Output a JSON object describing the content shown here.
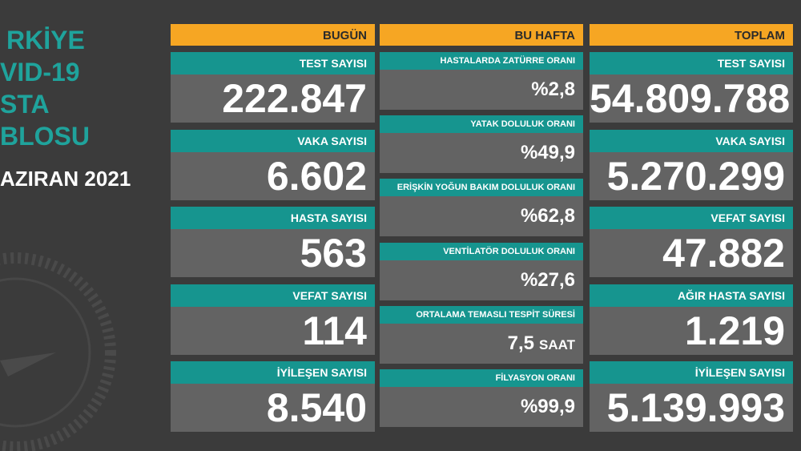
{
  "side_title": [
    "RKİYE",
    "VID-19",
    "STA",
    "BLOSU"
  ],
  "date": "AZIRAN 2021",
  "columns": [
    {
      "title": "BUGÜN",
      "items": [
        {
          "label": "TEST SAYISI",
          "value": "222.847"
        },
        {
          "label": "VAKA SAYISI",
          "value": "6.602"
        },
        {
          "label": "HASTA SAYISI",
          "value": "563"
        },
        {
          "label": "VEFAT SAYISI",
          "value": "114"
        },
        {
          "label": "İYİLEŞEN SAYISI",
          "value": "8.540"
        }
      ]
    },
    {
      "title": "BU HAFTA",
      "items": [
        {
          "label": "HASTALARDA ZATÜRRE ORANI",
          "value": "%2,8"
        },
        {
          "label": "YATAK DOLULUK ORANI",
          "value": "%49,9"
        },
        {
          "label": "ERİŞKİN YOĞUN BAKIM DOLULUK ORANI",
          "value": "%62,8"
        },
        {
          "label": "VENTİLATÖR DOLULUK ORANI",
          "value": "%27,6"
        },
        {
          "label": "ORTALAMA TEMASLI TESPİT SÜRESİ",
          "value": "7,5",
          "unit": "SAAT"
        },
        {
          "label": "FİLYASYON ORANI",
          "value": "%99,9"
        }
      ]
    },
    {
      "title": "TOPLAM",
      "items": [
        {
          "label": "TEST SAYISI",
          "value": "54.809.788"
        },
        {
          "label": "VAKA SAYISI",
          "value": "5.270.299"
        },
        {
          "label": "VEFAT SAYISI",
          "value": "47.882"
        },
        {
          "label": "AĞIR HASTA SAYISI",
          "value": "1.219"
        },
        {
          "label": "İYİLEŞEN SAYISI",
          "value": "5.139.993"
        }
      ]
    }
  ]
}
